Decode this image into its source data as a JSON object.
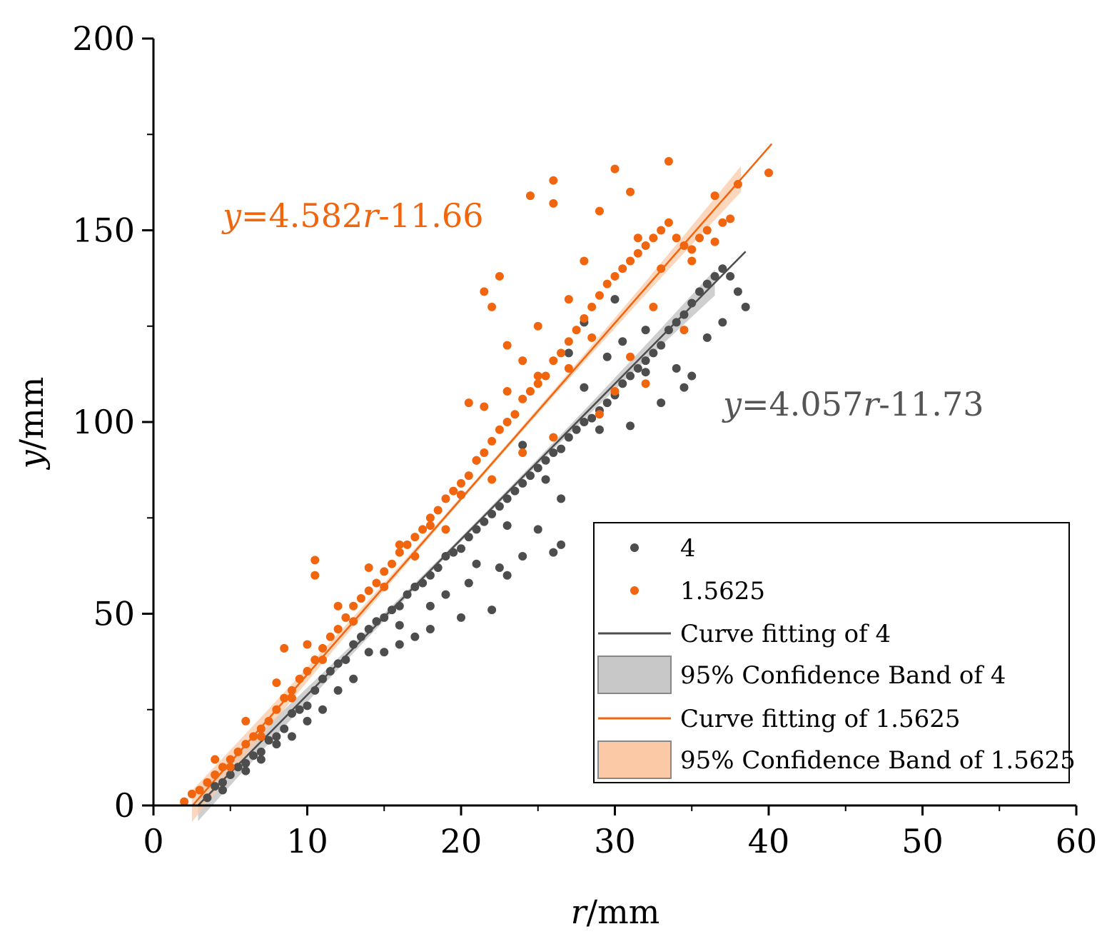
{
  "chart_data": {
    "type": "scatter",
    "xlabel": {
      "var": "r",
      "unit": "/mm"
    },
    "ylabel": {
      "var": "y",
      "unit": "/mm"
    },
    "xlim": [
      0,
      60
    ],
    "ylim": [
      0,
      200
    ],
    "x_ticks": [
      "0",
      "10",
      "20",
      "30",
      "40",
      "50",
      "60"
    ],
    "y_ticks": [
      "0",
      "50",
      "100",
      "150",
      "200"
    ],
    "grid": false,
    "legend_position": "bottom-right",
    "series": [
      {
        "name": "4",
        "color": "#4d4d4d",
        "fit": {
          "slope": 4.057,
          "intercept": -11.73,
          "x_range": [
            2.9,
            38.5
          ]
        },
        "band_color": "#bfbfbf",
        "points": [
          [
            3.5,
            2
          ],
          [
            4,
            5
          ],
          [
            4.5,
            6
          ],
          [
            5,
            8
          ],
          [
            5.5,
            10
          ],
          [
            6,
            11
          ],
          [
            6.5,
            13
          ],
          [
            7,
            14
          ],
          [
            7.5,
            17
          ],
          [
            8,
            18
          ],
          [
            8.5,
            20
          ],
          [
            9,
            24
          ],
          [
            9.5,
            25
          ],
          [
            10,
            26
          ],
          [
            10.5,
            30
          ],
          [
            11,
            33
          ],
          [
            11.5,
            35
          ],
          [
            12,
            37
          ],
          [
            12.5,
            38
          ],
          [
            13,
            42
          ],
          [
            13.5,
            44
          ],
          [
            14,
            46
          ],
          [
            14.5,
            48
          ],
          [
            15,
            49
          ],
          [
            15.5,
            51
          ],
          [
            16,
            52
          ],
          [
            16.5,
            55
          ],
          [
            17,
            57
          ],
          [
            17.5,
            58
          ],
          [
            18,
            60
          ],
          [
            18.5,
            62
          ],
          [
            19,
            65
          ],
          [
            19.5,
            66
          ],
          [
            20,
            67
          ],
          [
            20.5,
            70
          ],
          [
            21,
            72
          ],
          [
            21.5,
            74
          ],
          [
            22,
            76
          ],
          [
            22.5,
            78
          ],
          [
            23,
            80
          ],
          [
            23.5,
            82
          ],
          [
            24,
            84
          ],
          [
            24.5,
            86
          ],
          [
            25,
            88
          ],
          [
            25.5,
            90
          ],
          [
            26,
            92
          ],
          [
            26.5,
            93
          ],
          [
            27,
            96
          ],
          [
            27.5,
            98
          ],
          [
            28,
            100
          ],
          [
            28.5,
            101
          ],
          [
            29,
            103
          ],
          [
            29.5,
            105
          ],
          [
            30,
            107
          ],
          [
            30.5,
            110
          ],
          [
            31,
            112
          ],
          [
            31.5,
            114
          ],
          [
            32,
            116
          ],
          [
            32.5,
            118
          ],
          [
            33,
            120
          ],
          [
            33.5,
            124
          ],
          [
            34,
            126
          ],
          [
            34.5,
            128
          ],
          [
            35,
            131
          ],
          [
            35.5,
            134
          ],
          [
            36,
            136
          ],
          [
            36.5,
            138
          ],
          [
            37,
            140
          ],
          [
            37.5,
            138
          ],
          [
            38,
            134
          ],
          [
            38.5,
            130
          ],
          [
            35,
            112
          ],
          [
            34,
            114
          ],
          [
            32,
            124
          ],
          [
            30,
            132
          ],
          [
            28,
            126
          ],
          [
            26,
            66
          ],
          [
            26.5,
            68
          ],
          [
            23,
            60
          ],
          [
            22,
            51
          ],
          [
            20,
            49
          ],
          [
            18,
            46
          ],
          [
            16,
            42
          ],
          [
            13,
            33
          ],
          [
            11,
            25
          ],
          [
            9,
            18
          ],
          [
            7,
            12
          ],
          [
            21,
            90
          ],
          [
            20,
            81
          ],
          [
            24,
            94
          ],
          [
            27,
            118
          ],
          [
            29,
            98
          ],
          [
            31,
            99
          ],
          [
            33,
            105
          ],
          [
            25,
            72
          ],
          [
            22.5,
            62
          ],
          [
            24,
            65
          ],
          [
            20.5,
            58
          ],
          [
            19,
            55
          ],
          [
            17,
            44
          ],
          [
            15,
            40
          ],
          [
            12,
            30
          ],
          [
            10,
            22
          ],
          [
            8,
            16
          ],
          [
            6,
            9
          ],
          [
            4.5,
            4
          ],
          [
            28,
            109
          ],
          [
            29.5,
            117
          ],
          [
            30.5,
            121
          ],
          [
            32,
            113
          ],
          [
            34.5,
            109
          ],
          [
            36,
            122
          ],
          [
            37,
            126
          ],
          [
            25.5,
            85
          ],
          [
            26.5,
            80
          ],
          [
            23,
            73
          ],
          [
            21,
            63
          ],
          [
            18,
            52
          ],
          [
            16,
            47
          ],
          [
            14,
            40
          ]
        ]
      },
      {
        "name": "1.5625",
        "color": "#f0650e",
        "fit": {
          "slope": 4.582,
          "intercept": -11.66,
          "x_range": [
            2.5,
            40.2
          ]
        },
        "band_color": "#fac9a8",
        "points": [
          [
            2,
            1
          ],
          [
            2.5,
            3
          ],
          [
            3,
            4
          ],
          [
            3.5,
            6
          ],
          [
            4,
            8
          ],
          [
            4.5,
            10
          ],
          [
            5,
            12
          ],
          [
            5.5,
            14
          ],
          [
            6,
            16
          ],
          [
            6.5,
            18
          ],
          [
            7,
            20
          ],
          [
            7.5,
            22
          ],
          [
            8,
            25
          ],
          [
            8.5,
            28
          ],
          [
            9,
            30
          ],
          [
            9.5,
            33
          ],
          [
            10,
            35
          ],
          [
            10.5,
            38
          ],
          [
            11,
            41
          ],
          [
            11.5,
            44
          ],
          [
            12,
            46
          ],
          [
            12.5,
            49
          ],
          [
            13,
            52
          ],
          [
            13.5,
            54
          ],
          [
            14,
            56
          ],
          [
            14.5,
            58
          ],
          [
            15,
            61
          ],
          [
            15.5,
            63
          ],
          [
            16,
            66
          ],
          [
            16.5,
            68
          ],
          [
            17,
            70
          ],
          [
            17.5,
            72
          ],
          [
            18,
            75
          ],
          [
            18.5,
            77
          ],
          [
            19,
            80
          ],
          [
            19.5,
            82
          ],
          [
            20,
            84
          ],
          [
            20.5,
            86
          ],
          [
            21,
            90
          ],
          [
            21.5,
            92
          ],
          [
            22,
            95
          ],
          [
            22.5,
            98
          ],
          [
            23,
            100
          ],
          [
            23.5,
            102
          ],
          [
            24,
            106
          ],
          [
            24.5,
            108
          ],
          [
            25,
            110
          ],
          [
            25.5,
            112
          ],
          [
            26,
            116
          ],
          [
            26.5,
            118
          ],
          [
            27,
            121
          ],
          [
            27.5,
            124
          ],
          [
            28,
            127
          ],
          [
            28.5,
            130
          ],
          [
            29,
            133
          ],
          [
            29.5,
            136
          ],
          [
            30,
            138
          ],
          [
            30.5,
            140
          ],
          [
            31,
            142
          ],
          [
            31.5,
            144
          ],
          [
            32,
            146
          ],
          [
            32.5,
            148
          ],
          [
            33,
            150
          ],
          [
            33.5,
            152
          ],
          [
            34,
            148
          ],
          [
            34.5,
            146
          ],
          [
            35,
            145
          ],
          [
            35.5,
            148
          ],
          [
            36,
            150
          ],
          [
            36.5,
            159
          ],
          [
            37,
            152
          ],
          [
            37.5,
            153
          ],
          [
            38,
            162
          ],
          [
            40,
            165
          ],
          [
            10.5,
            64
          ],
          [
            10.5,
            60
          ],
          [
            8.5,
            41
          ],
          [
            21.5,
            134
          ],
          [
            22.5,
            138
          ],
          [
            24.5,
            159
          ],
          [
            26,
            163
          ],
          [
            26,
            157
          ],
          [
            30,
            166
          ],
          [
            31,
            160
          ],
          [
            33.5,
            168
          ],
          [
            29,
            155
          ],
          [
            28,
            142
          ],
          [
            25,
            125
          ],
          [
            23,
            120
          ],
          [
            22,
            130
          ],
          [
            24,
            116
          ],
          [
            27,
            132
          ],
          [
            31.5,
            148
          ],
          [
            32.5,
            130
          ],
          [
            33,
            140
          ],
          [
            34.5,
            124
          ],
          [
            35,
            142
          ],
          [
            36.5,
            147
          ],
          [
            30,
            108
          ],
          [
            31,
            117
          ],
          [
            32,
            110
          ],
          [
            29,
            102
          ],
          [
            26,
            96
          ],
          [
            24,
            92
          ],
          [
            22,
            85
          ],
          [
            20,
            81
          ],
          [
            18,
            73
          ],
          [
            16,
            68
          ],
          [
            14,
            62
          ],
          [
            12,
            52
          ],
          [
            10,
            42
          ],
          [
            8,
            32
          ],
          [
            6,
            22
          ],
          [
            4,
            12
          ],
          [
            20.5,
            105
          ],
          [
            21.5,
            104
          ],
          [
            23,
            108
          ],
          [
            25,
            112
          ],
          [
            27,
            114
          ],
          [
            28.5,
            122
          ],
          [
            17,
            65
          ],
          [
            19,
            72
          ],
          [
            15,
            57
          ],
          [
            13,
            48
          ],
          [
            11,
            38
          ],
          [
            9,
            28
          ],
          [
            7,
            18
          ],
          [
            5,
            10
          ]
        ]
      }
    ],
    "annotations": [
      {
        "text_var": "y",
        "text_rest": "=4.582",
        "text_var2": "r",
        "text_tail": "-11.66",
        "color": "#f0650e",
        "series": "1.5625"
      },
      {
        "text_var": "y",
        "text_rest": "=4.057",
        "text_var2": "r",
        "text_tail": "-11.73",
        "color": "#555555",
        "series": "4"
      }
    ],
    "legend": [
      {
        "label": "4",
        "kind": "point",
        "color": "#4d4d4d"
      },
      {
        "label": "1.5625",
        "kind": "point",
        "color": "#f0650e"
      },
      {
        "label": "Curve fitting of 4",
        "kind": "line",
        "color": "#4d4d4d"
      },
      {
        "label": "95% Confidence Band of 4",
        "kind": "band",
        "color": "#c8c8c8"
      },
      {
        "label": "Curve fitting of 1.5625",
        "kind": "line",
        "color": "#f0650e"
      },
      {
        "label": "95% Confidence Band of 1.5625",
        "kind": "band",
        "color": "#fcc9a6"
      }
    ]
  }
}
